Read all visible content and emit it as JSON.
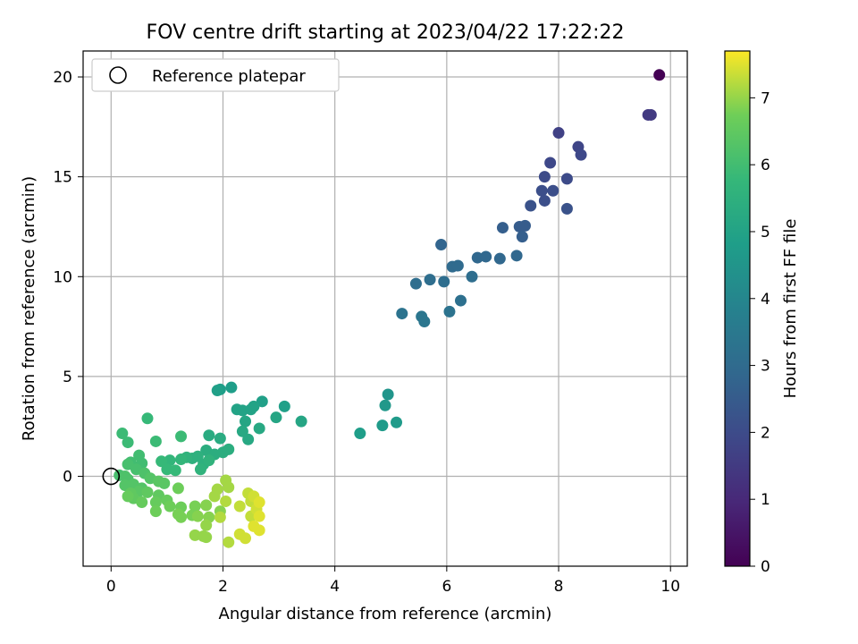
{
  "chart_data": {
    "type": "scatter",
    "title": "FOV centre drift starting at 2023/04/22 17:22:22",
    "xlabel": "Angular distance from reference (arcmin)",
    "ylabel": "Rotation from reference (arcmin)",
    "xlim": [
      -0.5,
      10.3
    ],
    "ylim": [
      -4.5,
      21.3
    ],
    "xticks": [
      0,
      2,
      4,
      6,
      8,
      10
    ],
    "yticks": [
      0,
      5,
      10,
      15,
      20
    ],
    "xtick_labels": [
      "0",
      "2",
      "4",
      "6",
      "8",
      "10"
    ],
    "ytick_labels": [
      "0",
      "5",
      "10",
      "15",
      "20"
    ],
    "grid": true,
    "legend": {
      "placement": "top-left",
      "entries": [
        "Reference platepar"
      ]
    },
    "colormap": "viridis",
    "colorbar": {
      "label": "Hours from first FF file",
      "range": [
        0,
        7.7
      ],
      "ticks": [
        0,
        1,
        2,
        3,
        4,
        5,
        6,
        7
      ],
      "tick_labels": [
        "0",
        "1",
        "2",
        "3",
        "4",
        "5",
        "6",
        "7"
      ]
    },
    "reference_point": {
      "name": "Reference platepar",
      "x": 0,
      "y": 0
    },
    "points": [
      [
        9.8,
        20.1,
        0.0
      ],
      [
        9.6,
        18.1,
        1.5
      ],
      [
        9.65,
        18.1,
        1.5
      ],
      [
        8.0,
        17.2,
        1.7
      ],
      [
        8.35,
        16.5,
        1.8
      ],
      [
        8.4,
        16.1,
        1.9
      ],
      [
        7.85,
        15.7,
        1.9
      ],
      [
        7.75,
        15.0,
        2.0
      ],
      [
        8.15,
        14.9,
        2.0
      ],
      [
        7.7,
        14.3,
        2.1
      ],
      [
        7.9,
        14.3,
        2.1
      ],
      [
        7.75,
        13.8,
        2.1
      ],
      [
        7.5,
        13.55,
        2.2
      ],
      [
        8.15,
        13.4,
        2.2
      ],
      [
        7.3,
        12.5,
        2.5
      ],
      [
        7.4,
        12.55,
        2.5
      ],
      [
        7.0,
        12.45,
        2.6
      ],
      [
        7.35,
        12.0,
        2.6
      ],
      [
        5.9,
        11.6,
        2.8
      ],
      [
        7.25,
        11.05,
        2.9
      ],
      [
        6.55,
        10.95,
        2.9
      ],
      [
        6.7,
        11.0,
        2.9
      ],
      [
        6.95,
        10.9,
        2.9
      ],
      [
        6.1,
        10.5,
        3.0
      ],
      [
        6.2,
        10.55,
        3.0
      ],
      [
        6.45,
        10.0,
        3.1
      ],
      [
        5.45,
        9.65,
        3.1
      ],
      [
        5.7,
        9.85,
        3.1
      ],
      [
        5.95,
        9.75,
        3.1
      ],
      [
        6.25,
        8.8,
        3.2
      ],
      [
        5.2,
        8.15,
        3.3
      ],
      [
        6.05,
        8.25,
        3.3
      ],
      [
        5.55,
        8.0,
        3.4
      ],
      [
        5.6,
        7.75,
        3.4
      ],
      [
        4.95,
        4.1,
        4.5
      ],
      [
        4.9,
        3.55,
        4.6
      ],
      [
        4.85,
        2.55,
        4.7
      ],
      [
        5.1,
        2.7,
        4.7
      ],
      [
        4.45,
        2.15,
        4.8
      ],
      [
        2.15,
        4.45,
        4.8
      ],
      [
        1.95,
        4.35,
        4.8
      ],
      [
        1.9,
        4.3,
        4.9
      ],
      [
        2.7,
        3.75,
        4.9
      ],
      [
        3.1,
        3.5,
        4.9
      ],
      [
        2.25,
        3.35,
        5.0
      ],
      [
        2.35,
        3.3,
        5.0
      ],
      [
        2.5,
        3.35,
        5.0
      ],
      [
        2.55,
        3.5,
        5.0
      ],
      [
        2.95,
        2.95,
        5.1
      ],
      [
        3.4,
        2.75,
        5.1
      ],
      [
        2.4,
        2.75,
        5.1
      ],
      [
        2.65,
        2.4,
        5.2
      ],
      [
        2.35,
        2.25,
        5.2
      ],
      [
        2.45,
        1.85,
        5.2
      ],
      [
        1.75,
        2.05,
        5.3
      ],
      [
        1.95,
        1.9,
        5.3
      ],
      [
        1.7,
        1.3,
        5.4
      ],
      [
        2.0,
        1.2,
        5.4
      ],
      [
        2.1,
        1.35,
        5.4
      ],
      [
        1.85,
        1.1,
        5.4
      ],
      [
        1.55,
        1.0,
        5.5
      ],
      [
        1.65,
        0.6,
        5.5
      ],
      [
        1.45,
        0.9,
        5.5
      ],
      [
        1.35,
        0.95,
        5.6
      ],
      [
        1.6,
        0.35,
        5.6
      ],
      [
        1.75,
        0.8,
        5.6
      ],
      [
        1.25,
        0.85,
        5.7
      ],
      [
        1.05,
        0.8,
        5.7
      ],
      [
        0.9,
        0.75,
        5.8
      ],
      [
        1.15,
        0.3,
        5.8
      ],
      [
        1.0,
        0.35,
        5.8
      ],
      [
        0.65,
        2.9,
        5.8
      ],
      [
        0.3,
        1.7,
        5.9
      ],
      [
        0.2,
        2.15,
        5.9
      ],
      [
        0.8,
        1.75,
        5.9
      ],
      [
        1.25,
        2.0,
        5.9
      ],
      [
        0.5,
        1.05,
        6.0
      ],
      [
        0.35,
        0.7,
        6.0
      ],
      [
        0.55,
        0.65,
        6.0
      ],
      [
        0.45,
        0.35,
        6.1
      ],
      [
        0.3,
        0.6,
        6.1
      ],
      [
        0.15,
        0.05,
        6.1
      ],
      [
        0.25,
        0.0,
        6.2
      ],
      [
        0.6,
        0.15,
        6.2
      ],
      [
        0.3,
        -0.15,
        6.2
      ],
      [
        0.7,
        -0.1,
        6.3
      ],
      [
        0.4,
        -0.4,
        6.3
      ],
      [
        0.55,
        -0.6,
        6.3
      ],
      [
        0.25,
        -0.45,
        6.3
      ],
      [
        0.85,
        -0.25,
        6.4
      ],
      [
        0.95,
        -0.35,
        6.4
      ],
      [
        0.5,
        -0.75,
        6.4
      ],
      [
        0.35,
        -0.85,
        6.5
      ],
      [
        0.65,
        -0.8,
        6.5
      ],
      [
        0.85,
        -0.95,
        6.5
      ],
      [
        0.4,
        -1.1,
        6.5
      ],
      [
        0.55,
        -1.3,
        6.6
      ],
      [
        0.3,
        -1.0,
        6.6
      ],
      [
        1.0,
        -1.2,
        6.6
      ],
      [
        0.8,
        -1.3,
        6.6
      ],
      [
        1.05,
        -1.5,
        6.7
      ],
      [
        0.8,
        -1.75,
        6.7
      ],
      [
        1.25,
        -1.55,
        6.7
      ],
      [
        1.2,
        -0.6,
        6.7
      ],
      [
        1.2,
        -1.9,
        6.8
      ],
      [
        1.5,
        -1.5,
        6.8
      ],
      [
        1.25,
        -2.05,
        6.8
      ],
      [
        1.45,
        -1.95,
        6.8
      ],
      [
        1.7,
        -1.45,
        6.9
      ],
      [
        1.55,
        -2.0,
        6.9
      ],
      [
        1.75,
        -2.05,
        6.9
      ],
      [
        1.95,
        -1.75,
        6.9
      ],
      [
        1.7,
        -2.45,
        7.0
      ],
      [
        1.5,
        -2.95,
        7.0
      ],
      [
        1.65,
        -3.0,
        7.0
      ],
      [
        1.7,
        -3.05,
        7.0
      ],
      [
        1.9,
        -0.65,
        7.1
      ],
      [
        2.05,
        -0.2,
        7.1
      ],
      [
        2.1,
        -0.55,
        7.1
      ],
      [
        1.85,
        -1.0,
        7.1
      ],
      [
        2.05,
        -1.25,
        7.2
      ],
      [
        1.95,
        -2.05,
        7.2
      ],
      [
        2.1,
        -3.3,
        7.2
      ],
      [
        2.45,
        -0.85,
        7.3
      ],
      [
        2.5,
        -1.25,
        7.3
      ],
      [
        2.3,
        -1.5,
        7.3
      ],
      [
        2.5,
        -2.0,
        7.3
      ],
      [
        2.3,
        -2.9,
        7.4
      ],
      [
        2.4,
        -3.1,
        7.4
      ],
      [
        2.55,
        -1.0,
        7.4
      ],
      [
        2.6,
        -1.65,
        7.4
      ],
      [
        2.65,
        -1.3,
        7.5
      ],
      [
        2.65,
        -2.0,
        7.5
      ],
      [
        2.55,
        -2.5,
        7.5
      ],
      [
        2.65,
        -2.7,
        7.5
      ]
    ]
  }
}
